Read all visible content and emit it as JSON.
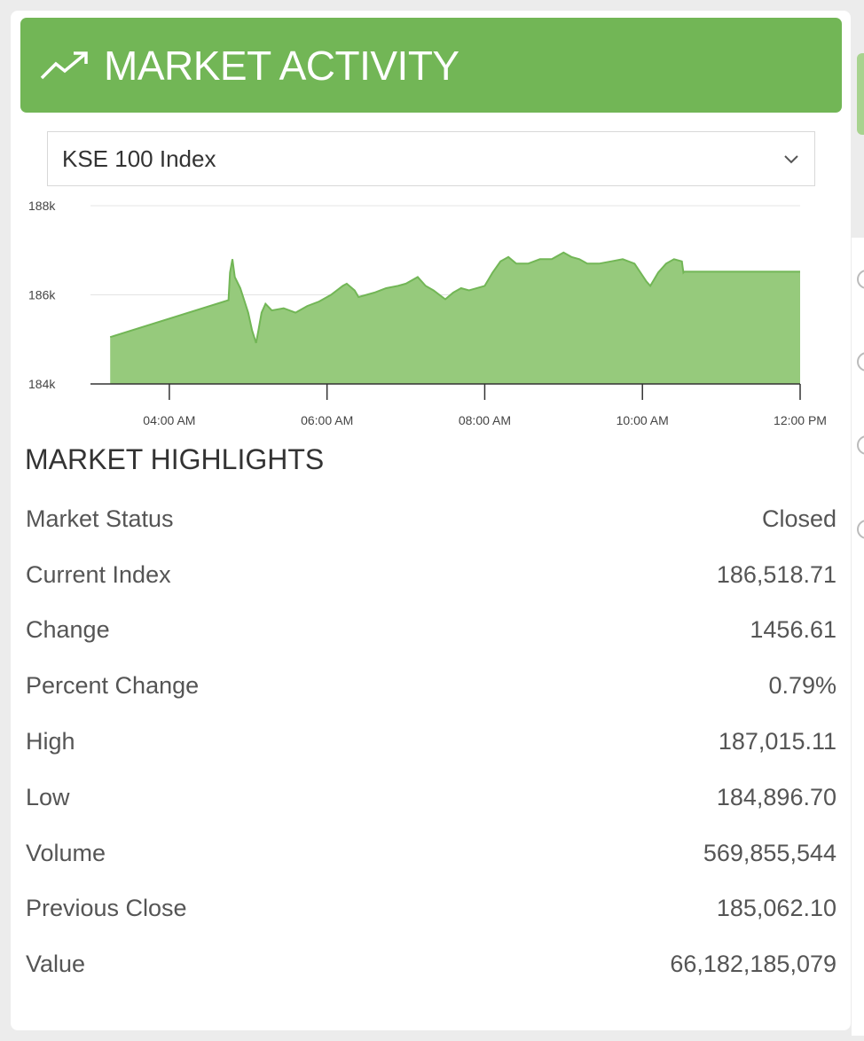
{
  "header": {
    "title": "MARKET ACTIVITY",
    "icon": "trending-up-icon"
  },
  "index_select": {
    "value": "KSE 100 Index"
  },
  "chart_data": {
    "type": "area",
    "yticks": [
      "188k",
      "186k",
      "184k"
    ],
    "xticks": [
      "04:00 AM",
      "06:00 AM",
      "08:00 AM",
      "10:00 AM",
      "12:00 PM"
    ],
    "ylim": [
      184000,
      188000
    ],
    "xlim_hours": [
      3.0,
      12.0
    ],
    "grid": true,
    "color": "#72b656",
    "fill": "#96ca7c",
    "x": [
      3.25,
      4.75,
      4.77,
      4.8,
      4.83,
      4.9,
      5.0,
      5.05,
      5.1,
      5.13,
      5.17,
      5.22,
      5.3,
      5.45,
      5.6,
      5.75,
      5.9,
      6.05,
      6.2,
      6.25,
      6.35,
      6.4,
      6.5,
      6.6,
      6.75,
      6.9,
      7.0,
      7.15,
      7.25,
      7.35,
      7.5,
      7.6,
      7.7,
      7.8,
      8.0,
      8.1,
      8.2,
      8.3,
      8.4,
      8.55,
      8.7,
      8.85,
      9.0,
      9.1,
      9.2,
      9.3,
      9.45,
      9.6,
      9.75,
      9.9,
      10.05,
      10.1,
      10.2,
      10.3,
      10.4,
      10.5,
      10.52,
      10.53,
      12.0
    ],
    "y": [
      185050,
      185880,
      186500,
      186800,
      186400,
      186150,
      185600,
      185200,
      184920,
      185200,
      185600,
      185800,
      185650,
      185700,
      185600,
      185750,
      185850,
      186000,
      186200,
      186250,
      186100,
      185950,
      186000,
      186050,
      186150,
      186200,
      186250,
      186400,
      186200,
      186100,
      185900,
      186050,
      186150,
      186100,
      186200,
      186500,
      186750,
      186850,
      186700,
      186700,
      186800,
      186800,
      186950,
      186850,
      186800,
      186700,
      186700,
      186750,
      186800,
      186700,
      186300,
      186200,
      186500,
      186700,
      186800,
      186750,
      186500,
      186520,
      186520
    ]
  },
  "highlights": {
    "title": "MARKET HIGHLIGHTS",
    "rows": [
      {
        "label": "Market Status",
        "value": "Closed"
      },
      {
        "label": "Current Index",
        "value": "186,518.71"
      },
      {
        "label": "Change",
        "value": "1456.61"
      },
      {
        "label": "Percent Change",
        "value": "0.79%"
      },
      {
        "label": "High",
        "value": "187,015.11"
      },
      {
        "label": "Low",
        "value": "184,896.70"
      },
      {
        "label": "Volume",
        "value": "569,855,544"
      },
      {
        "label": "Previous Close",
        "value": "185,062.10"
      },
      {
        "label": "Value",
        "value": "66,182,185,079"
      }
    ]
  }
}
